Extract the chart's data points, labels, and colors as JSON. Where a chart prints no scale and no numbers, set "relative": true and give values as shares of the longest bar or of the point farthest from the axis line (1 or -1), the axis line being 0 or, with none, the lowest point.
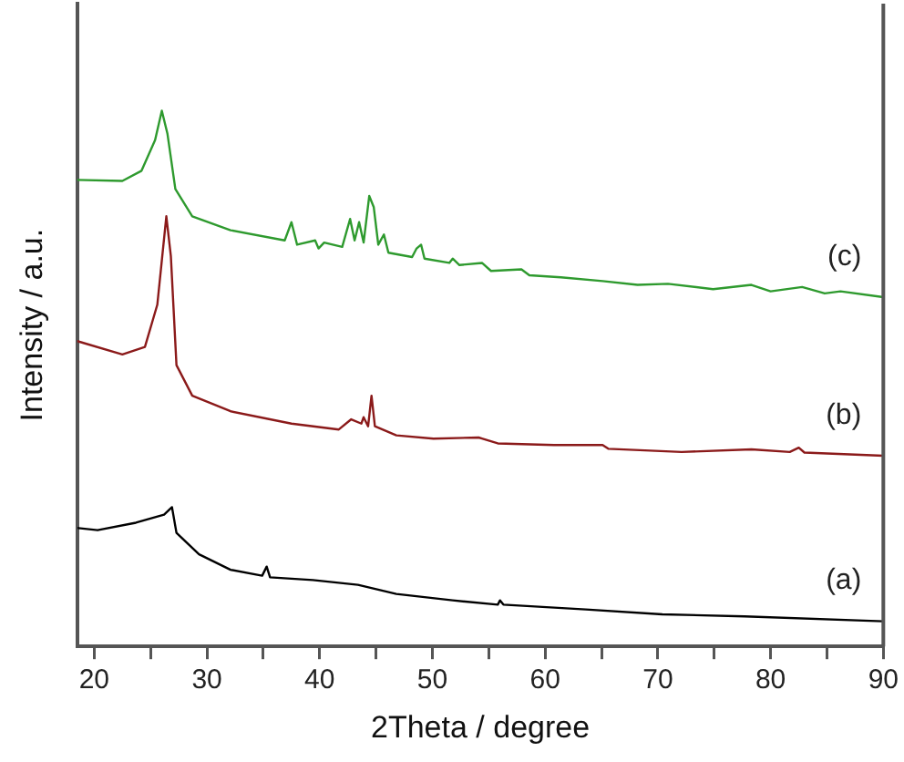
{
  "chart_data": {
    "type": "line",
    "xlabel": "2Theta / degree",
    "ylabel": "Intensity / a.u.",
    "relative": true,
    "legend": false,
    "grid": false,
    "marker": "none",
    "line_style": "solid",
    "xlim": [
      18.5,
      90
    ],
    "xticks": [
      20,
      {
        "value": 25,
        "label": null
      },
      30,
      {
        "value": 35,
        "label": null
      },
      40,
      {
        "value": 45,
        "label": null
      },
      50,
      {
        "value": 55,
        "label": null
      },
      60,
      {
        "value": 65,
        "label": null
      },
      70,
      {
        "value": 75,
        "label": null
      },
      80,
      {
        "value": 85,
        "label": null
      },
      90
    ],
    "series": [
      {
        "name": "(c)",
        "color": "#2e9a2e",
        "x": [
          18.5,
          22.5,
          24.2,
          25.4,
          26.0,
          26.5,
          27.2,
          28.7,
          32.1,
          36.9,
          37.5,
          38.0,
          39.6,
          39.9,
          40.4,
          42.0,
          42.7,
          43.1,
          43.5,
          43.9,
          44.4,
          44.8,
          45.2,
          45.7,
          46.1,
          48.2,
          48.6,
          49.0,
          49.3,
          51.5,
          51.8,
          52.4,
          54.4,
          55.2,
          57.9,
          58.6,
          61.4,
          65.1,
          68.2,
          70.9,
          74.9,
          78.3,
          80.0,
          82.8,
          84.8,
          86.2,
          90
        ],
        "values": [
          0.871,
          0.869,
          0.888,
          0.945,
          1.0,
          0.957,
          0.854,
          0.803,
          0.777,
          0.758,
          0.792,
          0.75,
          0.758,
          0.743,
          0.754,
          0.746,
          0.798,
          0.758,
          0.792,
          0.754,
          0.841,
          0.82,
          0.75,
          0.769,
          0.735,
          0.727,
          0.743,
          0.75,
          0.724,
          0.716,
          0.724,
          0.712,
          0.716,
          0.701,
          0.704,
          0.693,
          0.689,
          0.682,
          0.675,
          0.677,
          0.667,
          0.675,
          0.663,
          0.671,
          0.659,
          0.663,
          0.652
        ]
      },
      {
        "name": "(b)",
        "color": "#8b1a1a",
        "x": [
          18.5,
          22.5,
          24.5,
          25.6,
          26.4,
          26.8,
          27.3,
          28.7,
          32.1,
          37.5,
          41.7,
          42.8,
          43.7,
          43.9,
          44.3,
          44.6,
          44.9,
          46.8,
          50.1,
          54.1,
          54.4,
          55.8,
          60.8,
          65.1,
          65.6,
          72.1,
          78.3,
          81.7,
          82.5,
          83.0,
          90
        ],
        "values": [
          0.57,
          0.545,
          0.559,
          0.638,
          0.803,
          0.729,
          0.525,
          0.468,
          0.439,
          0.416,
          0.405,
          0.424,
          0.416,
          0.428,
          0.411,
          0.468,
          0.411,
          0.394,
          0.388,
          0.39,
          0.388,
          0.379,
          0.376,
          0.376,
          0.369,
          0.363,
          0.368,
          0.363,
          0.371,
          0.362,
          0.356
        ]
      },
      {
        "name": "(a)",
        "color": "#000000",
        "x": [
          18.6,
          20.3,
          23.7,
          26.2,
          26.9,
          27.3,
          29.3,
          32.1,
          34.9,
          35.3,
          35.6,
          39.4,
          43.4,
          46.8,
          51.8,
          55.8,
          56.0,
          56.3,
          63.6,
          70.4,
          77.7,
          90
        ],
        "values": [
          0.221,
          0.217,
          0.231,
          0.246,
          0.26,
          0.212,
          0.172,
          0.143,
          0.132,
          0.149,
          0.129,
          0.124,
          0.115,
          0.098,
          0.086,
          0.078,
          0.086,
          0.078,
          0.069,
          0.06,
          0.056,
          0.047
        ]
      }
    ]
  }
}
